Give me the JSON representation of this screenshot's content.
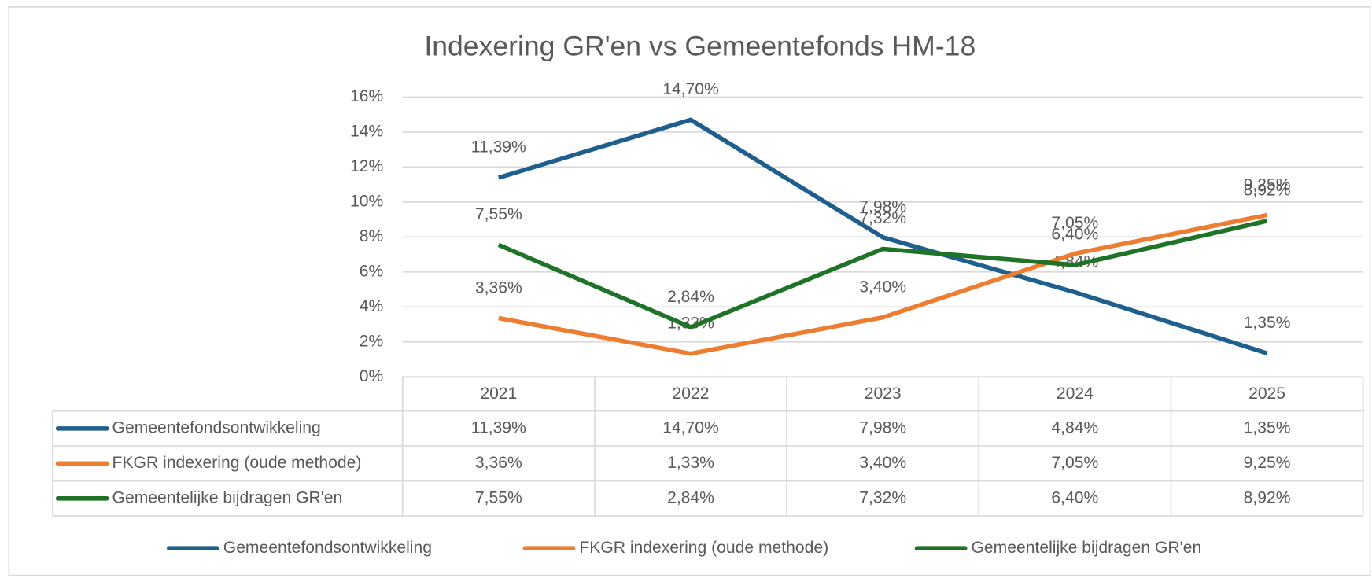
{
  "chart_data": {
    "type": "line",
    "title": "Indexering GR'en vs Gemeentefonds HM-18",
    "categories": [
      "2021",
      "2022",
      "2023",
      "2024",
      "2025"
    ],
    "series": [
      {
        "name": "Gemeentefondsontwikkeling",
        "color": "#1f5f8e",
        "values": [
          11.39,
          14.7,
          7.98,
          4.84,
          1.35
        ],
        "value_labels": [
          "11,39%",
          "14,70%",
          "7,98%",
          "4,84%",
          "1,35%"
        ]
      },
      {
        "name": "FKGR indexering (oude methode)",
        "color": "#ed7d31",
        "values": [
          3.36,
          1.33,
          3.4,
          7.05,
          9.25
        ],
        "value_labels": [
          "3,36%",
          "1,33%",
          "3,40%",
          "7,05%",
          "9,25%"
        ]
      },
      {
        "name": "Gemeentelijke bijdragen GR'en",
        "color": "#1f7327",
        "values": [
          7.55,
          2.84,
          7.32,
          6.4,
          8.92
        ],
        "value_labels": [
          "7,55%",
          "2,84%",
          "7,32%",
          "6,40%",
          "8,92%"
        ]
      }
    ],
    "ylim": [
      0,
      16
    ],
    "yticks": [
      {
        "value": 0,
        "label": "0%"
      },
      {
        "value": 2,
        "label": "2%"
      },
      {
        "value": 4,
        "label": "4%"
      },
      {
        "value": 6,
        "label": "6%"
      },
      {
        "value": 8,
        "label": "8%"
      },
      {
        "value": 10,
        "label": "10%"
      },
      {
        "value": 12,
        "label": "12%"
      },
      {
        "value": 14,
        "label": "14%"
      },
      {
        "value": 16,
        "label": "16%"
      }
    ],
    "grid": true,
    "legend": "bottom"
  }
}
